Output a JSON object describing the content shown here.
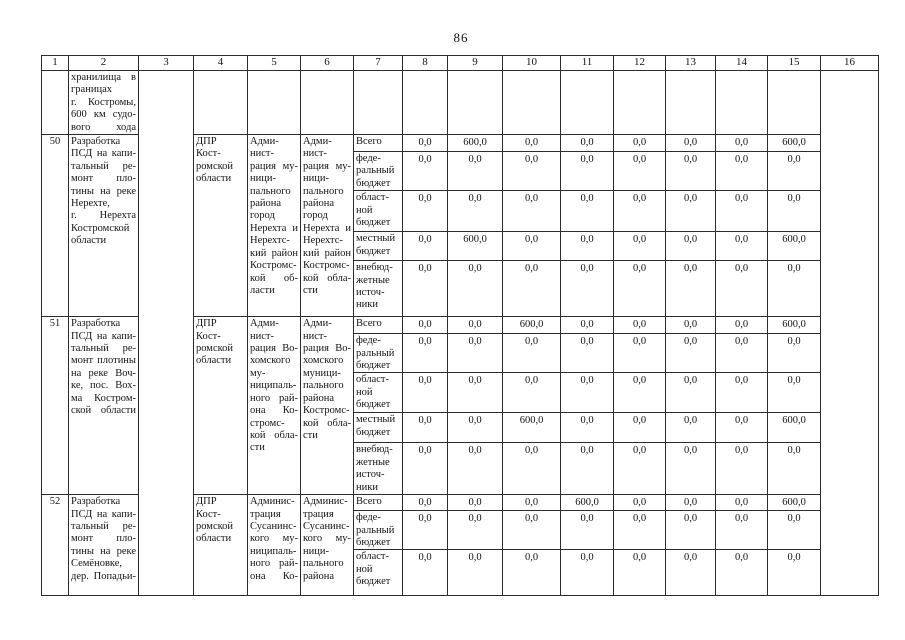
{
  "page_number": "86",
  "table": {
    "column_numbers": [
      "1",
      "2",
      "3",
      "4",
      "5",
      "6",
      "7",
      "8",
      "9",
      "10",
      "11",
      "12",
      "13",
      "14",
      "15",
      "16"
    ],
    "continuation_row": {
      "activity_lines": [
        "хранилища в",
        "границах",
        "г. Костромы,",
        "600 км судо-",
        "вого хода"
      ]
    },
    "rows": [
      {
        "num": "50",
        "activity_lines": [
          "Разработка",
          "ПСД на капи-",
          "тальный ре-",
          "монт пло-",
          "тины на реке",
          "Нерехте,",
          "г. Нерехта",
          "Костромской",
          "области"
        ],
        "col4_lines": [
          "ДПР",
          "Кост-",
          "ромской",
          "области"
        ],
        "col5_lines": [
          "Адми-",
          "нист-",
          "рация му-",
          "ници-",
          "пального",
          "района",
          "город",
          "Нерехта и",
          "Нерехтс-",
          "кий район",
          "Костромс-",
          "кой об-",
          "ласти"
        ],
        "col6_lines": [
          "Адми-",
          "нист-",
          "рация му-",
          "ници-",
          "пального",
          "района",
          "город",
          "Нерехта и",
          "Нерехтс-",
          "кий район",
          "Костромс-",
          "кой обла-",
          "сти"
        ],
        "budget_rows": [
          {
            "label_lines": [
              "Всего"
            ],
            "values": [
              "0,0",
              "600,0",
              "0,0",
              "0,0",
              "0,0",
              "0,0",
              "0,0",
              "600,0"
            ]
          },
          {
            "label_lines": [
              "феде-",
              "ральный",
              "бюджет"
            ],
            "values": [
              "0,0",
              "0,0",
              "0,0",
              "0,0",
              "0,0",
              "0,0",
              "0,0",
              "0,0"
            ]
          },
          {
            "label_lines": [
              "област-",
              "ной",
              "бюджет"
            ],
            "values": [
              "0,0",
              "0,0",
              "0,0",
              "0,0",
              "0,0",
              "0,0",
              "0,0",
              "0,0"
            ]
          },
          {
            "label_lines": [
              "местный",
              "бюджет"
            ],
            "values": [
              "0,0",
              "600,0",
              "0,0",
              "0,0",
              "0,0",
              "0,0",
              "0,0",
              "600,0"
            ]
          },
          {
            "label_lines": [
              "внебюд-",
              "жетные",
              "источ-",
              "ники"
            ],
            "values": [
              "0,0",
              "0,0",
              "0,0",
              "0,0",
              "0,0",
              "0,0",
              "0,0",
              "0,0"
            ]
          }
        ]
      },
      {
        "num": "51",
        "activity_lines": [
          "Разработка",
          "ПСД на капи-",
          "тальный ре-",
          "монт плотины",
          "на реке Воч-",
          "ке, пос. Вох-",
          "ма Костром-",
          "ской области"
        ],
        "col4_lines": [
          "ДПР",
          "Кост-",
          "ромской",
          "области"
        ],
        "col5_lines": [
          "Адми-",
          "нист-",
          "рация Во-",
          "хомского",
          "му-",
          "ниципаль-",
          "ного рай-",
          "она Ко-",
          "стромс-",
          "кой обла-",
          "сти"
        ],
        "col6_lines": [
          "Адми-",
          "нист-",
          "рация Во-",
          "хомского",
          "муници-",
          "пального",
          "района",
          "Костромс-",
          "кой обла-",
          "сти"
        ],
        "budget_rows": [
          {
            "label_lines": [
              "Всего"
            ],
            "values": [
              "0,0",
              "0,0",
              "600,0",
              "0,0",
              "0,0",
              "0,0",
              "0,0",
              "600,0"
            ]
          },
          {
            "label_lines": [
              "феде-",
              "ральный",
              "бюджет"
            ],
            "values": [
              "0,0",
              "0,0",
              "0,0",
              "0,0",
              "0,0",
              "0,0",
              "0,0",
              "0,0"
            ]
          },
          {
            "label_lines": [
              "област-",
              "ной",
              "бюджет"
            ],
            "values": [
              "0,0",
              "0,0",
              "0,0",
              "0,0",
              "0,0",
              "0,0",
              "0,0",
              "0,0"
            ]
          },
          {
            "label_lines": [
              "местный",
              "бюджет"
            ],
            "values": [
              "0,0",
              "0,0",
              "600,0",
              "0,0",
              "0,0",
              "0,0",
              "0,0",
              "600,0"
            ]
          },
          {
            "label_lines": [
              "внебюд-",
              "жетные",
              "источ-",
              "ники"
            ],
            "values": [
              "0,0",
              "0,0",
              "0,0",
              "0,0",
              "0,0",
              "0,0",
              "0,0",
              "0,0"
            ]
          }
        ]
      },
      {
        "num": "52",
        "activity_lines": [
          "Разработка",
          "ПСД на капи-",
          "тальный ре-",
          "монт пло-",
          "тины на реке",
          "Семёновке,",
          "дер. Попадьи-"
        ],
        "col4_lines": [
          "ДПР",
          "Кост-",
          "ромской",
          "области"
        ],
        "col5_lines": [
          "Админис-",
          "трация",
          "Сусанинс-",
          "кого му-",
          "ниципаль-",
          "ного рай-",
          "она Ко-"
        ],
        "col6_lines": [
          "Админис-",
          "трация",
          "Сусанинс-",
          "кого му-",
          "ници-",
          "пального",
          "района"
        ],
        "budget_rows": [
          {
            "label_lines": [
              "Всего"
            ],
            "values": [
              "0,0",
              "0,0",
              "0,0",
              "600,0",
              "0,0",
              "0,0",
              "0,0",
              "600,0"
            ]
          },
          {
            "label_lines": [
              "феде-",
              "ральный",
              "бюджет"
            ],
            "values": [
              "0,0",
              "0,0",
              "0,0",
              "0,0",
              "0,0",
              "0,0",
              "0,0",
              "0,0"
            ]
          },
          {
            "label_lines": [
              "област-",
              "ной",
              "бюджет"
            ],
            "values": [
              "0,0",
              "0,0",
              "0,0",
              "0,0",
              "0,0",
              "0,0",
              "0,0",
              "0,0"
            ]
          }
        ]
      }
    ]
  }
}
